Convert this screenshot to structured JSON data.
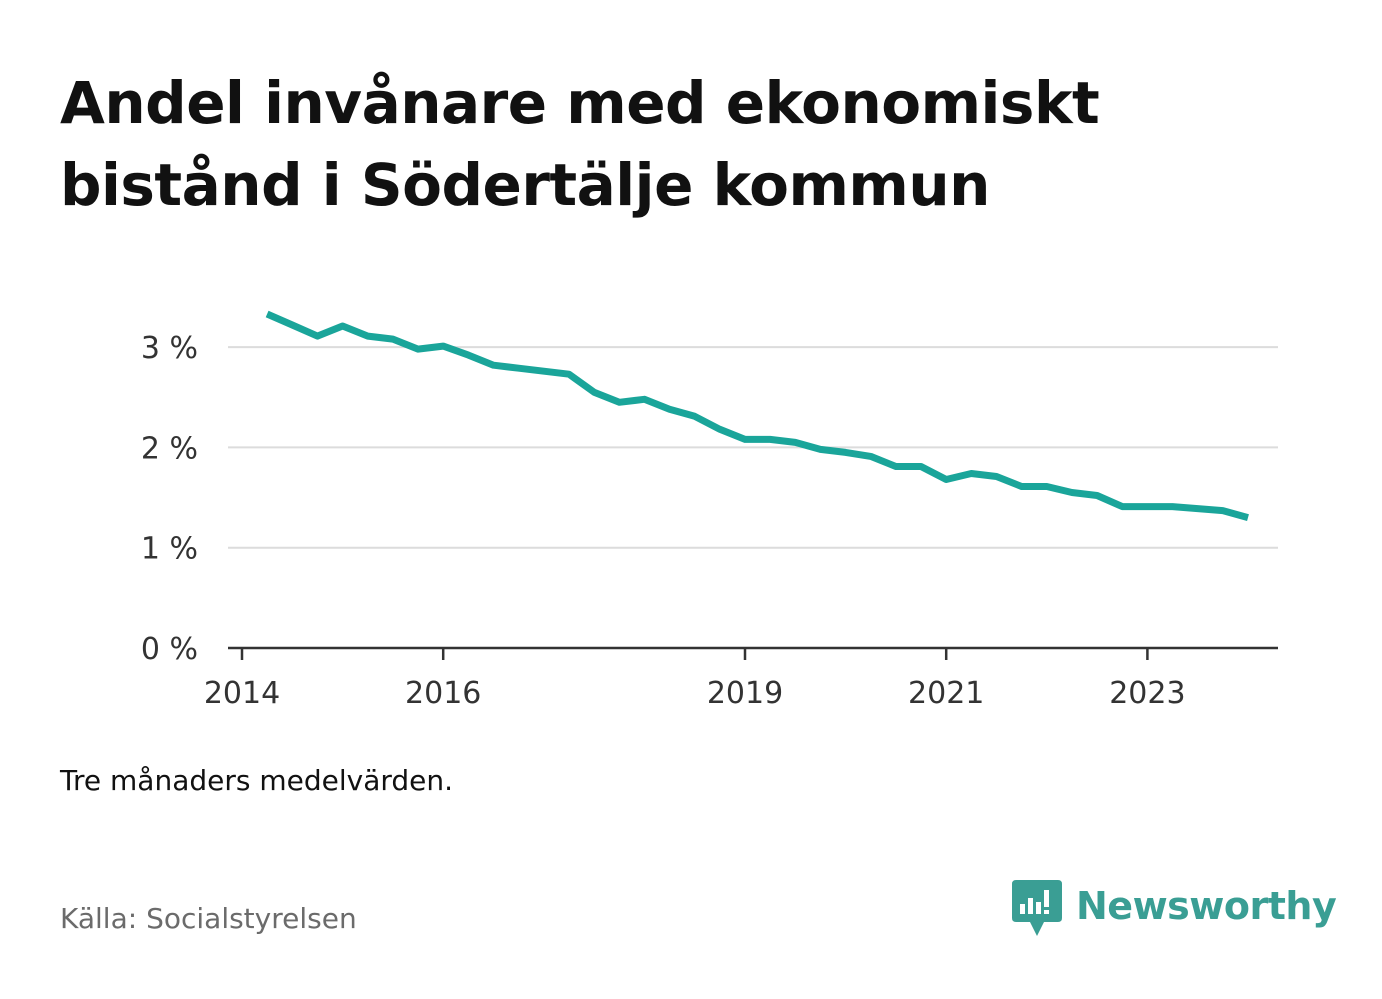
{
  "title": "Andel invånare med ekonomiskt bistånd i Södertälje kommun",
  "note": "Tre månaders medelvärden.",
  "source": "Källa: Socialstyrelsen",
  "brand": {
    "name": "Newsworthy",
    "icon": "newsworthy-logo-icon",
    "color": "#3a9e94"
  },
  "chart_data": {
    "type": "line",
    "line_color": "#1aa59a",
    "grid": true,
    "ylim": [
      0,
      3
    ],
    "y_ticks": [
      {
        "value": 0,
        "label": "0 %"
      },
      {
        "value": 1,
        "label": "1 %"
      },
      {
        "value": 2,
        "label": "2 %"
      },
      {
        "value": 3,
        "label": "3 %"
      }
    ],
    "xlim": [
      2014,
      2024.9
    ],
    "x_ticks": [
      {
        "value": 2014,
        "label": "2014"
      },
      {
        "value": 2016,
        "label": "2016"
      },
      {
        "value": 2019,
        "label": "2019"
      },
      {
        "value": 2021,
        "label": "2021"
      },
      {
        "value": 2023,
        "label": "2023"
      }
    ],
    "series": [
      {
        "x": [
          "2014-04",
          "2014-07",
          "2014-10",
          "2015-01",
          "2015-04",
          "2015-07",
          "2015-10",
          "2016-01",
          "2016-04",
          "2016-07",
          "2016-10",
          "2017-01",
          "2017-04",
          "2017-07",
          "2017-10",
          "2018-01",
          "2018-04",
          "2018-07",
          "2018-10",
          "2019-01",
          "2019-04",
          "2019-07",
          "2019-10",
          "2020-01",
          "2020-04",
          "2020-07",
          "2020-10",
          "2021-01",
          "2021-04",
          "2021-07",
          "2021-10",
          "2022-01",
          "2022-04",
          "2022-07",
          "2022-10",
          "2023-01",
          "2023-04",
          "2023-07",
          "2023-10",
          "2024-01"
        ],
        "values": [
          3.33,
          3.22,
          3.11,
          3.21,
          3.11,
          3.08,
          2.98,
          3.01,
          2.92,
          2.82,
          2.79,
          2.76,
          2.73,
          2.55,
          2.45,
          2.48,
          2.38,
          2.31,
          2.18,
          2.08,
          2.08,
          2.05,
          1.98,
          1.95,
          1.91,
          1.81,
          1.81,
          1.68,
          1.74,
          1.71,
          1.61,
          1.61,
          1.55,
          1.52,
          1.41,
          1.41,
          1.41,
          1.39,
          1.37,
          1.3
        ]
      }
    ]
  }
}
